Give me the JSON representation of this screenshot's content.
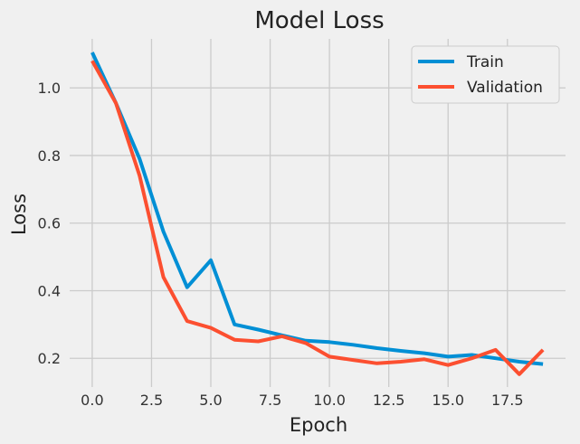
{
  "chart_data": {
    "type": "line",
    "title": "Model Loss",
    "xlabel": "Epoch",
    "ylabel": "Loss",
    "xlim": [
      -0.95,
      19.95
    ],
    "ylim": [
      0.115,
      1.145
    ],
    "xticks": [
      0.0,
      2.5,
      5.0,
      7.5,
      10.0,
      12.5,
      15.0,
      17.5
    ],
    "xtick_labels": [
      "0.0",
      "2.5",
      "5.0",
      "7.5",
      "10.0",
      "12.5",
      "15.0",
      "17.5"
    ],
    "yticks": [
      0.2,
      0.4,
      0.6,
      0.8,
      1.0
    ],
    "ytick_labels": [
      "0.2",
      "0.4",
      "0.6",
      "0.8",
      "1.0"
    ],
    "grid": true,
    "legend_position": "top-right",
    "x": [
      0,
      1,
      2,
      3,
      4,
      5,
      6,
      7,
      8,
      9,
      10,
      11,
      12,
      13,
      14,
      15,
      16,
      17,
      18,
      19
    ],
    "series": [
      {
        "name": "Train",
        "color": "#008fd5",
        "values": [
          1.105,
          0.955,
          0.79,
          0.575,
          0.41,
          0.49,
          0.3,
          0.285,
          0.268,
          0.252,
          0.248,
          0.24,
          0.23,
          0.222,
          0.215,
          0.205,
          0.21,
          0.2,
          0.19,
          0.183
        ]
      },
      {
        "name": "Validation",
        "color": "#fc4f30",
        "values": [
          1.08,
          0.955,
          0.74,
          0.44,
          0.31,
          0.29,
          0.255,
          0.25,
          0.265,
          0.245,
          0.205,
          0.195,
          0.185,
          0.19,
          0.197,
          0.18,
          0.2,
          0.225,
          0.153,
          0.225
        ]
      }
    ]
  }
}
